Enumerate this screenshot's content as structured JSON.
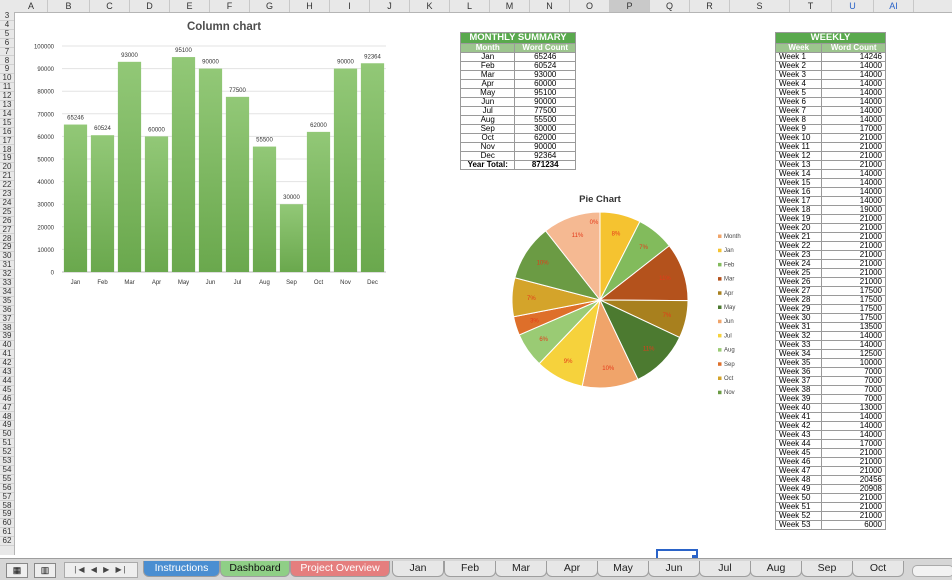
{
  "columns": [
    "A",
    "B",
    "C",
    "D",
    "E",
    "F",
    "G",
    "H",
    "I",
    "J",
    "K",
    "L",
    "M",
    "N",
    "O",
    "P",
    "Q",
    "R",
    "S",
    "T",
    "U",
    "AI"
  ],
  "selected_column": "P",
  "rows": [
    "3",
    "4",
    "5",
    "6",
    "7",
    "8",
    "9",
    "10",
    "11",
    "12",
    "13",
    "14",
    "15",
    "16",
    "17",
    "18",
    "19",
    "20",
    "21",
    "22",
    "23",
    "24",
    "25",
    "26",
    "27",
    "28",
    "29",
    "30",
    "31",
    "32",
    "33",
    "34",
    "35",
    "36",
    "37",
    "38",
    "39",
    "40",
    "41",
    "42",
    "43",
    "44",
    "45",
    "46",
    "47",
    "48",
    "49",
    "50",
    "51",
    "52",
    "53",
    "54",
    "55",
    "56",
    "57",
    "58",
    "59",
    "60",
    "61",
    "62"
  ],
  "chart_data": [
    {
      "type": "bar",
      "title": "Column chart",
      "categories": [
        "Jan",
        "Feb",
        "Mar",
        "Apr",
        "May",
        "Jun",
        "Jul",
        "Aug",
        "Sep",
        "Oct",
        "Nov",
        "Dec"
      ],
      "values": [
        65246,
        60524,
        93000,
        60000,
        95100,
        90000,
        77500,
        55500,
        30000,
        62000,
        90000,
        92364
      ],
      "ylim": [
        0,
        100000
      ],
      "yticks": [
        0,
        10000,
        20000,
        30000,
        40000,
        50000,
        60000,
        70000,
        80000,
        90000,
        100000
      ],
      "grid": true,
      "color": "#7fb95f"
    },
    {
      "type": "pie",
      "title": "Pie Chart",
      "categories": [
        "Jan",
        "Feb",
        "Mar",
        "Apr",
        "May",
        "Jun",
        "Jul",
        "Aug",
        "Sep",
        "Oct",
        "Nov",
        "Dec"
      ],
      "values": [
        65246,
        60524,
        93000,
        60000,
        95100,
        90000,
        77500,
        55500,
        30000,
        62000,
        90000,
        92364
      ],
      "labels": [
        "8%",
        "7%",
        "11%",
        "7%",
        "11%",
        "10%",
        "9%",
        "6%",
        "3%",
        "7%",
        "10%",
        "11%"
      ],
      "zero_label": "0%",
      "colors": [
        "#f5c330",
        "#82bb5c",
        "#b4521c",
        "#a8801e",
        "#4c7a30",
        "#f0a46a",
        "#f6d23c",
        "#9acb74",
        "#de6f2a",
        "#d4a42a",
        "#6b9b44",
        "#f5b992"
      ],
      "legend": [
        "Month",
        "Jan",
        "Feb",
        "Mar",
        "Apr",
        "May",
        "Jun",
        "Jul",
        "Aug",
        "Sep",
        "Oct",
        "Nov"
      ],
      "legend_colors": [
        "#f0a46a",
        "#f5c330",
        "#82bb5c",
        "#b4521c",
        "#a8801e",
        "#4c7a30",
        "#f0a46a",
        "#f6d23c",
        "#9acb74",
        "#de6f2a",
        "#d4a42a",
        "#6b9b44"
      ],
      "legend_position": "right"
    }
  ],
  "monthly": {
    "title": "MONTHLY SUMMARY",
    "headers": [
      "Month",
      "Word Count"
    ],
    "rows": [
      [
        "Jan",
        "65246"
      ],
      [
        "Feb",
        "60524"
      ],
      [
        "Mar",
        "93000"
      ],
      [
        "Apr",
        "60000"
      ],
      [
        "May",
        "95100"
      ],
      [
        "Jun",
        "90000"
      ],
      [
        "Jul",
        "77500"
      ],
      [
        "Aug",
        "55500"
      ],
      [
        "Sep",
        "30000"
      ],
      [
        "Oct",
        "62000"
      ],
      [
        "Nov",
        "90000"
      ],
      [
        "Dec",
        "92364"
      ]
    ],
    "total_label": "Year Total:",
    "total_value": "871234"
  },
  "weekly": {
    "title": "WEEKLY",
    "headers": [
      "Week",
      "Word Count"
    ],
    "rows": [
      [
        "Week 1",
        "14246"
      ],
      [
        "Week 2",
        "14000"
      ],
      [
        "Week 3",
        "14000"
      ],
      [
        "Week 4",
        "14000"
      ],
      [
        "Week 5",
        "14000"
      ],
      [
        "Week 6",
        "14000"
      ],
      [
        "Week 7",
        "14000"
      ],
      [
        "Week 8",
        "14000"
      ],
      [
        "Week 9",
        "17000"
      ],
      [
        "Week 10",
        "21000"
      ],
      [
        "Week 11",
        "21000"
      ],
      [
        "Week 12",
        "21000"
      ],
      [
        "Week 13",
        "21000"
      ],
      [
        "Week 14",
        "14000"
      ],
      [
        "Week 15",
        "14000"
      ],
      [
        "Week 16",
        "14000"
      ],
      [
        "Week 17",
        "14000"
      ],
      [
        "Week 18",
        "19000"
      ],
      [
        "Week 19",
        "21000"
      ],
      [
        "Week 20",
        "21000"
      ],
      [
        "Week 21",
        "21000"
      ],
      [
        "Week 22",
        "21000"
      ],
      [
        "Week 23",
        "21000"
      ],
      [
        "Week 24",
        "21000"
      ],
      [
        "Week 25",
        "21000"
      ],
      [
        "Week 26",
        "21000"
      ],
      [
        "Week 27",
        "17500"
      ],
      [
        "Week 28",
        "17500"
      ],
      [
        "Week 29",
        "17500"
      ],
      [
        "Week 30",
        "17500"
      ],
      [
        "Week 31",
        "13500"
      ],
      [
        "Week 32",
        "14000"
      ],
      [
        "Week 33",
        "14000"
      ],
      [
        "Week 34",
        "12500"
      ],
      [
        "Week 35",
        "10000"
      ],
      [
        "Week 36",
        "7000"
      ],
      [
        "Week 37",
        "7000"
      ],
      [
        "Week 38",
        "7000"
      ],
      [
        "Week 39",
        "7000"
      ],
      [
        "Week 40",
        "13000"
      ],
      [
        "Week 41",
        "14000"
      ],
      [
        "Week 42",
        "14000"
      ],
      [
        "Week 43",
        "14000"
      ],
      [
        "Week 44",
        "17000"
      ],
      [
        "Week 45",
        "21000"
      ],
      [
        "Week 46",
        "21000"
      ],
      [
        "Week 47",
        "21000"
      ],
      [
        "Week 48",
        "20456"
      ],
      [
        "Week 49",
        "20908"
      ],
      [
        "Week 50",
        "21000"
      ],
      [
        "Week 51",
        "21000"
      ],
      [
        "Week 52",
        "21000"
      ],
      [
        "Week 53",
        "6000"
      ]
    ]
  },
  "sheet_tabs": [
    {
      "label": "Instructions",
      "color": "#4a8ed1",
      "text": "#ffffff"
    },
    {
      "label": "Dashboard",
      "color": "#8fcf86",
      "text": "#111111"
    },
    {
      "label": "Project Overview",
      "color": "#e57e7e",
      "text": "#ffffff"
    },
    {
      "label": "Jan"
    },
    {
      "label": "Feb"
    },
    {
      "label": "Mar"
    },
    {
      "label": "Apr"
    },
    {
      "label": "May"
    },
    {
      "label": "Jun"
    },
    {
      "label": "Jul"
    },
    {
      "label": "Aug"
    },
    {
      "label": "Sep"
    },
    {
      "label": "Oct"
    }
  ],
  "nav_glyphs": "|◀ ◀ ▶ ▶|",
  "view_icons": [
    "normal-view-icon",
    "page-layout-view-icon"
  ]
}
